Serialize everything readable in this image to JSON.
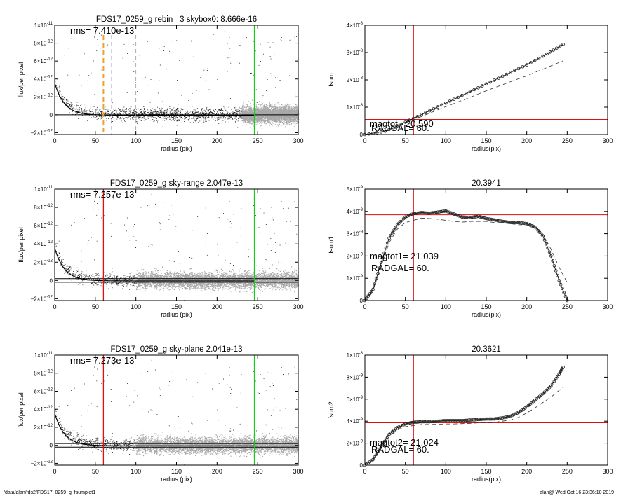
{
  "footer": {
    "path": "/data/alan/fds2/FDS17_0259_g_fsumplot1",
    "stamp": "alan@  Wed Oct 16 23:36:10 2019"
  },
  "colors": {
    "red": "#e01010",
    "green": "#10d010",
    "orange": "#f0a030",
    "scatter_grey": "#a8a8a8"
  },
  "chart_data": [
    {
      "type": "scatter",
      "title": "FDS17_0259_g rebin= 3    skybox0:  8.666e-16",
      "annotations": [
        "rms= 7.410e-13"
      ],
      "xlabel": "radius (pix)",
      "ylabel": "flux/per pixel",
      "xlim": [
        0,
        300
      ],
      "ylim": [
        -2.2e-12,
        1e-11
      ],
      "xticks": [
        "0",
        "50",
        "100",
        "150",
        "200",
        "250",
        "300"
      ],
      "yticks": [
        {
          "value": 1e-11,
          "mantissa": "1×10",
          "exp": "-11"
        },
        {
          "value": 8e-12,
          "mantissa": "8×10",
          "exp": "-12"
        },
        {
          "value": 6e-12,
          "mantissa": "6×10",
          "exp": "-12"
        },
        {
          "value": 4e-12,
          "mantissa": "4×10",
          "exp": "-12"
        },
        {
          "value": 2e-12,
          "mantissa": "2×10",
          "exp": "-12"
        },
        {
          "value": 0,
          "mantissa": "0",
          "exp": ""
        },
        {
          "value": -2e-12,
          "mantissa": "−2×10",
          "exp": "-12"
        }
      ],
      "vlines": [
        {
          "x": 60,
          "color": "#f0a030",
          "style": "dashed-thick"
        },
        {
          "x": 70,
          "color": "#8899bb",
          "style": "dashed"
        },
        {
          "x": 100,
          "color": "#999999",
          "style": "dashed"
        },
        {
          "x": 246,
          "color": "#10d010",
          "style": "solid"
        }
      ],
      "hlines": [
        {
          "y": 0,
          "color": "#000000",
          "style": "solid"
        }
      ],
      "grey_from_x": 230
    },
    {
      "type": "line",
      "title": "",
      "annotations": [
        "magtot=  20.590",
        "RADGAL=     60."
      ],
      "xlabel": "radius(pix)",
      "ylabel": "fsum",
      "xlim": [
        0,
        300
      ],
      "ylim": [
        0,
        4e-08
      ],
      "xticks": [
        "0",
        "50",
        "100",
        "150",
        "200",
        "250",
        "300"
      ],
      "yticks": [
        {
          "value": 4e-08,
          "mantissa": "4×10",
          "exp": "-8"
        },
        {
          "value": 3e-08,
          "mantissa": "3×10",
          "exp": "-8"
        },
        {
          "value": 2e-08,
          "mantissa": "2×10",
          "exp": "-8"
        },
        {
          "value": 1e-08,
          "mantissa": "1×10",
          "exp": "-8"
        },
        {
          "value": 0,
          "mantissa": "0",
          "exp": ""
        }
      ],
      "vlines": [
        {
          "x": 60,
          "color": "#e01010",
          "style": "solid"
        }
      ],
      "hlines": [
        {
          "y": 5.5e-09,
          "color": "#e01010",
          "style": "solid"
        }
      ],
      "series": [
        {
          "style": "circles",
          "x": [
            0,
            25,
            50,
            75,
            100,
            125,
            150,
            175,
            200,
            225,
            245
          ],
          "y": [
            0,
            1.2e-09,
            4.5e-09,
            8e-09,
            1.15e-08,
            1.5e-08,
            1.85e-08,
            2.2e-08,
            2.55e-08,
            2.95e-08,
            3.3e-08
          ]
        },
        {
          "style": "dashed",
          "x": [
            0,
            25,
            50,
            75,
            100,
            125,
            150,
            175,
            200,
            225,
            245
          ],
          "y": [
            0,
            1.2e-09,
            4.2e-09,
            7.2e-09,
            1.02e-08,
            1.3e-08,
            1.6e-08,
            1.88e-08,
            2.15e-08,
            2.45e-08,
            2.7e-08
          ]
        }
      ]
    },
    {
      "type": "scatter",
      "title": "FDS17_0259_g sky-range  2.047e-13",
      "annotations": [
        "rms= 7.257e-13"
      ],
      "xlabel": "radius (pix)",
      "ylabel": "flux/per pixel",
      "xlim": [
        0,
        300
      ],
      "ylim": [
        -2.2e-12,
        1e-11
      ],
      "xticks": [
        "0",
        "50",
        "100",
        "150",
        "200",
        "250",
        "300"
      ],
      "yticks": [
        {
          "value": 1e-11,
          "mantissa": "1×10",
          "exp": "-11"
        },
        {
          "value": 8e-12,
          "mantissa": "8×10",
          "exp": "-12"
        },
        {
          "value": 6e-12,
          "mantissa": "6×10",
          "exp": "-12"
        },
        {
          "value": 4e-12,
          "mantissa": "4×10",
          "exp": "-12"
        },
        {
          "value": 2e-12,
          "mantissa": "2×10",
          "exp": "-12"
        },
        {
          "value": 0,
          "mantissa": "0",
          "exp": ""
        },
        {
          "value": -2e-12,
          "mantissa": "−2×10",
          "exp": "-12"
        }
      ],
      "vlines": [
        {
          "x": 60,
          "color": "#e01010",
          "style": "solid"
        },
        {
          "x": 246,
          "color": "#10d010",
          "style": "solid"
        }
      ],
      "hlines": [
        {
          "y": 2e-13,
          "color": "#000000",
          "style": "solid"
        },
        {
          "y": -2e-13,
          "color": "#000000",
          "style": "solid"
        }
      ],
      "grey_from_x": 100
    },
    {
      "type": "line",
      "title": "20.3941",
      "annotations": [
        "magtot1=  21.039",
        "RADGAL=     60."
      ],
      "xlabel": "radius(pix)",
      "ylabel": "fsum1",
      "xlim": [
        0,
        300
      ],
      "ylim": [
        0,
        5e-09
      ],
      "xticks": [
        "0",
        "50",
        "100",
        "150",
        "200",
        "250",
        "300"
      ],
      "yticks": [
        {
          "value": 5e-09,
          "mantissa": "5×10",
          "exp": "-9"
        },
        {
          "value": 4e-09,
          "mantissa": "4×10",
          "exp": "-9"
        },
        {
          "value": 3e-09,
          "mantissa": "3×10",
          "exp": "-9"
        },
        {
          "value": 2e-09,
          "mantissa": "2×10",
          "exp": "-9"
        },
        {
          "value": 1e-09,
          "mantissa": "1×10",
          "exp": "-9"
        },
        {
          "value": 0,
          "mantissa": "0",
          "exp": ""
        }
      ],
      "vlines": [
        {
          "x": 60,
          "color": "#e01010",
          "style": "solid"
        }
      ],
      "hlines": [
        {
          "y": 3.85e-09,
          "color": "#e01010",
          "style": "solid"
        }
      ],
      "series": [
        {
          "style": "circles",
          "x": [
            0,
            10,
            20,
            30,
            40,
            50,
            60,
            70,
            80,
            90,
            100,
            110,
            120,
            130,
            140,
            150,
            160,
            170,
            180,
            190,
            200,
            210,
            220,
            230,
            240,
            250
          ],
          "y": [
            0,
            5e-10,
            1.7e-09,
            2.8e-09,
            3.4e-09,
            3.75e-09,
            3.9e-09,
            3.95e-09,
            3.92e-09,
            3.97e-09,
            4.02e-09,
            3.88e-09,
            3.75e-09,
            3.72e-09,
            3.78e-09,
            3.68e-09,
            3.62e-09,
            3.55e-09,
            3.5e-09,
            3.5e-09,
            3.45e-09,
            3.3e-09,
            2.9e-09,
            2e-09,
            9e-10,
            0
          ]
        },
        {
          "style": "dashed",
          "x": [
            0,
            10,
            20,
            30,
            40,
            50,
            60,
            70,
            80,
            90,
            100,
            110,
            120,
            130,
            140,
            150,
            160,
            170,
            180,
            190,
            200,
            210,
            220,
            230,
            240,
            250
          ],
          "y": [
            0,
            4.5e-10,
            1.55e-09,
            2.6e-09,
            3.2e-09,
            3.5e-09,
            3.6e-09,
            3.7e-09,
            3.68e-09,
            3.65e-09,
            3.6e-09,
            3.55e-09,
            3.52e-09,
            3.55e-09,
            3.55e-09,
            3.55e-09,
            3.5e-09,
            3.48e-09,
            3.45e-09,
            3.4e-09,
            3.4e-09,
            3.3e-09,
            3e-09,
            2.3e-09,
            1.5e-09,
            8e-10
          ]
        }
      ]
    },
    {
      "type": "scatter",
      "title": "FDS17_0259_g sky-plane  2.041e-13",
      "annotations": [
        "rms= 7.273e-13"
      ],
      "xlabel": "radius (pix)",
      "ylabel": "flux/per pixel",
      "xlim": [
        0,
        300
      ],
      "ylim": [
        -2.2e-12,
        1e-11
      ],
      "xticks": [
        "0",
        "50",
        "100",
        "150",
        "200",
        "250",
        "300"
      ],
      "yticks": [
        {
          "value": 1e-11,
          "mantissa": "1×10",
          "exp": "-11"
        },
        {
          "value": 8e-12,
          "mantissa": "8×10",
          "exp": "-12"
        },
        {
          "value": 6e-12,
          "mantissa": "6×10",
          "exp": "-12"
        },
        {
          "value": 4e-12,
          "mantissa": "4×10",
          "exp": "-12"
        },
        {
          "value": 2e-12,
          "mantissa": "2×10",
          "exp": "-12"
        },
        {
          "value": 0,
          "mantissa": "0",
          "exp": ""
        },
        {
          "value": -2e-12,
          "mantissa": "−2×10",
          "exp": "-12"
        }
      ],
      "vlines": [
        {
          "x": 60,
          "color": "#e01010",
          "style": "solid"
        },
        {
          "x": 246,
          "color": "#10d010",
          "style": "solid"
        }
      ],
      "hlines": [
        {
          "y": 2e-13,
          "color": "#000000",
          "style": "solid"
        },
        {
          "y": -2e-13,
          "color": "#000000",
          "style": "solid"
        }
      ],
      "grey_from_x": 100
    },
    {
      "type": "line",
      "title": "20.3621",
      "annotations": [
        "magtot2=  21.024",
        "RADGAL=     60."
      ],
      "xlabel": "radius(pix)",
      "ylabel": "fsum2",
      "xlim": [
        0,
        300
      ],
      "ylim": [
        0,
        1e-08
      ],
      "xticks": [
        "0",
        "50",
        "100",
        "150",
        "200",
        "250",
        "300"
      ],
      "yticks": [
        {
          "value": 1e-08,
          "mantissa": "1×10",
          "exp": "-8"
        },
        {
          "value": 8e-09,
          "mantissa": "8×10",
          "exp": "-9"
        },
        {
          "value": 6e-09,
          "mantissa": "6×10",
          "exp": "-9"
        },
        {
          "value": 4e-09,
          "mantissa": "4×10",
          "exp": "-9"
        },
        {
          "value": 2e-09,
          "mantissa": "2×10",
          "exp": "-9"
        },
        {
          "value": 0,
          "mantissa": "0",
          "exp": ""
        }
      ],
      "vlines": [
        {
          "x": 60,
          "color": "#e01010",
          "style": "solid"
        }
      ],
      "hlines": [
        {
          "y": 3.85e-09,
          "color": "#e01010",
          "style": "solid"
        }
      ],
      "series": [
        {
          "style": "circles",
          "x": [
            0,
            10,
            20,
            30,
            40,
            50,
            60,
            70,
            80,
            90,
            100,
            110,
            120,
            130,
            140,
            150,
            160,
            170,
            180,
            190,
            200,
            210,
            220,
            230,
            240,
            245
          ],
          "y": [
            0,
            5e-10,
            1.7e-09,
            2.8e-09,
            3.4e-09,
            3.75e-09,
            3.9e-09,
            3.95e-09,
            3.95e-09,
            4e-09,
            4.05e-09,
            4.05e-09,
            4.05e-09,
            4.1e-09,
            4.15e-09,
            4.2e-09,
            4.2e-09,
            4.3e-09,
            4.45e-09,
            4.8e-09,
            5.3e-09,
            5.9e-09,
            6.5e-09,
            7.2e-09,
            8.3e-09,
            8.9e-09
          ]
        },
        {
          "style": "dashed",
          "x": [
            0,
            10,
            20,
            30,
            40,
            50,
            60,
            70,
            80,
            90,
            100,
            110,
            120,
            130,
            140,
            150,
            160,
            170,
            180,
            190,
            200,
            210,
            220,
            230,
            240,
            245
          ],
          "y": [
            0,
            4.5e-10,
            1.55e-09,
            2.6e-09,
            3.2e-09,
            3.5e-09,
            3.6e-09,
            3.7e-09,
            3.7e-09,
            3.72e-09,
            3.75e-09,
            3.75e-09,
            3.78e-09,
            3.8e-09,
            3.85e-09,
            3.85e-09,
            3.9e-09,
            4e-09,
            4.1e-09,
            4.35e-09,
            4.75e-09,
            5.2e-09,
            5.7e-09,
            6.2e-09,
            6.8e-09,
            7.1e-09
          ]
        }
      ]
    }
  ]
}
